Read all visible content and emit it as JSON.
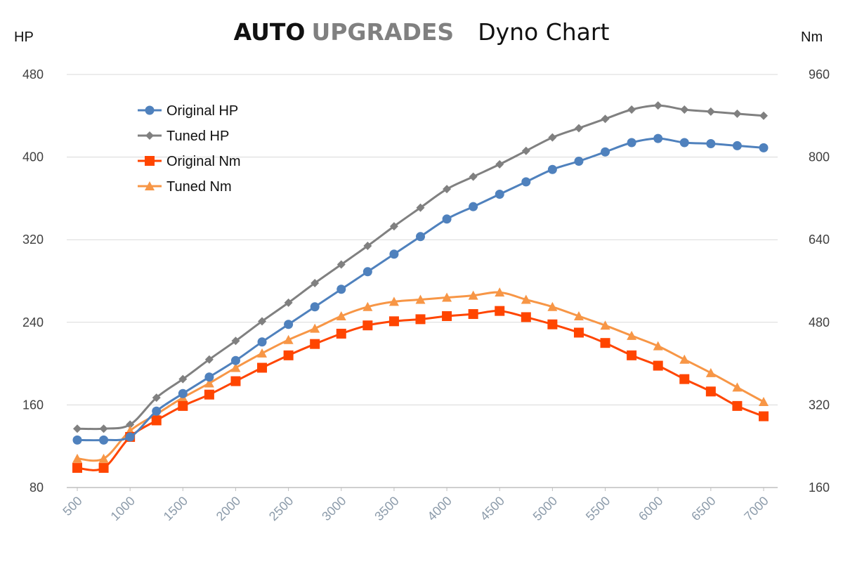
{
  "header": {
    "brand_primary": "AUTO",
    "brand_secondary": "UPGRADES",
    "title": "Dyno Chart"
  },
  "colors": {
    "original_hp": "#4F81BD",
    "tuned_hp": "#808080",
    "original_nm": "#FF4500",
    "tuned_nm": "#F79646",
    "grid": "#D9D9D9",
    "axis_text": "#404040",
    "x_tick_text": "#8C9BAA"
  },
  "chart_data": {
    "type": "line",
    "title": "Dyno Chart",
    "xlabel": "",
    "y_left_label": "HP",
    "y_right_label": "Nm",
    "y_left_lim": [
      80,
      480
    ],
    "y_right_lim": [
      160,
      960
    ],
    "y_left_ticks": [
      "80",
      "160",
      "240",
      "320",
      "400",
      "480"
    ],
    "y_right_ticks": [
      "160",
      "320",
      "480",
      "640",
      "800",
      "960"
    ],
    "x_tick_labels": [
      "500",
      "1000",
      "1500",
      "2000",
      "2500",
      "3000",
      "3500",
      "4000",
      "4500",
      "5000",
      "5500",
      "6000",
      "6500",
      "7000"
    ],
    "x": [
      500,
      750,
      1000,
      1250,
      1500,
      1750,
      2000,
      2250,
      2500,
      2750,
      3000,
      3250,
      3500,
      3750,
      4000,
      4250,
      4500,
      4750,
      5000,
      5250,
      5500,
      5750,
      6000,
      6250,
      6500,
      6750,
      7000
    ],
    "grid": true,
    "legend": "top-left",
    "series": [
      {
        "name": "Original HP",
        "axis": "left",
        "marker": "circle",
        "color_key": "original_hp",
        "values": [
          126,
          126,
          129,
          154,
          171,
          187,
          203,
          221,
          238,
          255,
          272,
          289,
          306,
          323,
          340,
          352,
          364,
          376,
          388,
          396,
          405,
          414,
          418,
          414,
          413,
          411,
          409
        ]
      },
      {
        "name": "Tuned HP",
        "axis": "left",
        "marker": "diamond",
        "color_key": "tuned_hp",
        "values": [
          137,
          137,
          141,
          167,
          185,
          204,
          222,
          241,
          259,
          278,
          296,
          314,
          333,
          351,
          369,
          381,
          393,
          406,
          419,
          428,
          437,
          446,
          450,
          446,
          444,
          442,
          440
        ]
      },
      {
        "name": "Original Nm",
        "axis": "right",
        "marker": "square",
        "color_key": "original_nm",
        "values": [
          198,
          198,
          258,
          290,
          318,
          340,
          366,
          392,
          416,
          438,
          458,
          474,
          482,
          486,
          492,
          496,
          502,
          490,
          476,
          460,
          440,
          416,
          396,
          370,
          346,
          318,
          298
        ]
      },
      {
        "name": "Tuned Nm",
        "axis": "right",
        "marker": "triangle",
        "color_key": "tuned_nm",
        "values": [
          216,
          216,
          270,
          302,
          334,
          362,
          392,
          420,
          446,
          468,
          492,
          510,
          520,
          524,
          528,
          532,
          538,
          524,
          510,
          492,
          474,
          454,
          434,
          408,
          382,
          354,
          326
        ]
      }
    ]
  }
}
